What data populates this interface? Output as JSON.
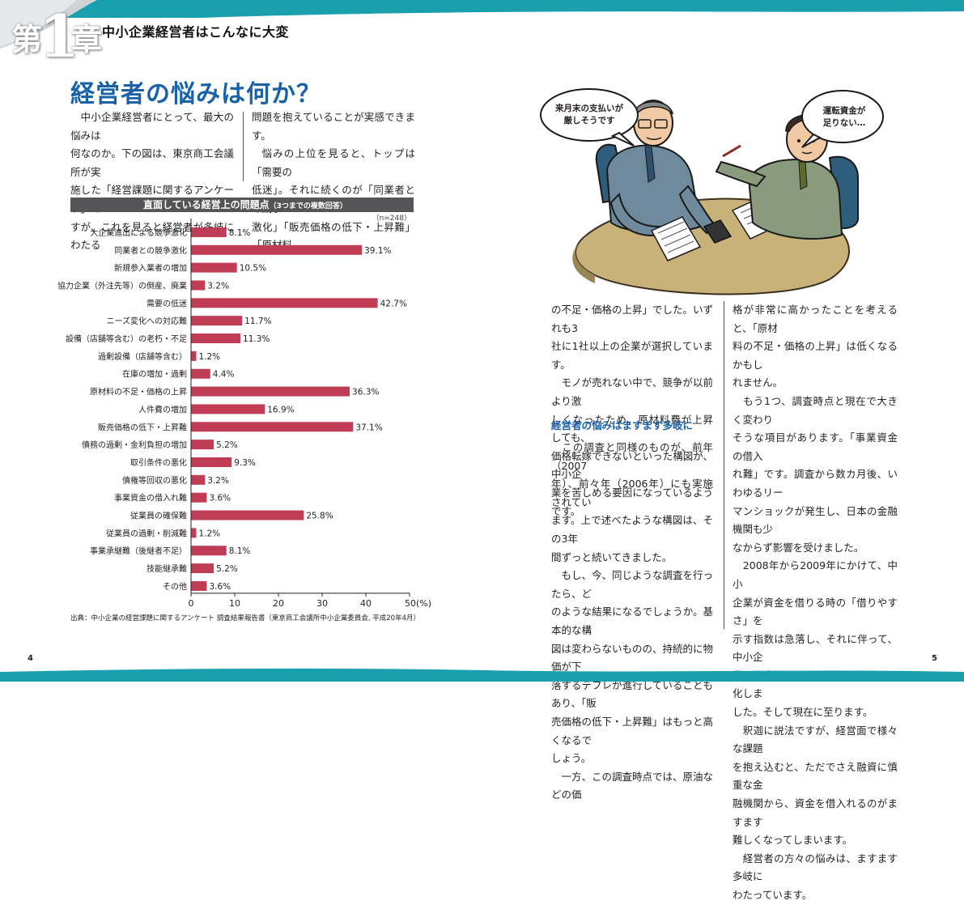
{
  "header": {
    "chapter_char1": "第",
    "chapter_num": "1",
    "chapter_char2": "章",
    "chapter_title": "中小企業経営者はこんなに大変"
  },
  "heading": "経営者の悩みは何か？",
  "intro": {
    "col1": [
      "中小企業経営者にとって、最大の悩みは",
      "何なのか。下の図は、東京商工会議所が実",
      "施した「経営課題に関するアンケート」で",
      "すが、これを見ると経営者が多岐にわたる"
    ],
    "col2": [
      "問題を抱えていることが実感できます。",
      "悩みの上位を見ると、トップは「需要の",
      "低迷」。それに続くのが「同業者との競争",
      "激化」「販売価格の低下・上昇難」「原材料"
    ]
  },
  "illustration": {
    "bubble_left": [
      "来月末の支払いが",
      "厳しそうです"
    ],
    "bubble_right": [
      "運転資金が",
      "足りない…"
    ]
  },
  "chart": {
    "title": "直面している経営上の問題点",
    "title_note": "（3つまでの複数回答）",
    "n_label": "（n=248）",
    "source": "出典：中小企業の経営課題に関するアンケート 調査結果報告書（東京商工会議所中小企業委員会, 平成20年4月）"
  },
  "chart_data": {
    "type": "bar",
    "orientation": "horizontal",
    "title": "直面している経営上の問題点",
    "subtitle": "（3つまでの複数回答）",
    "n": "（n=248）",
    "categories": [
      "大企業進出による競争激化",
      "同業者との競争激化",
      "新規参入業者の増加",
      "協力企業（外注先等）の倒産、廃業",
      "需要の低迷",
      "ニーズ変化への対応難",
      "設備（店舗等含む）の老朽・不足",
      "過剰設備（店舗等含む）",
      "在庫の増加・過剰",
      "原材料の不足・価格の上昇",
      "人件費の増加",
      "販売価格の低下・上昇難",
      "債務の過剰・金利負担の増加",
      "取引条件の悪化",
      "債権等回収の悪化",
      "事業資金の借入れ難",
      "従業員の確保難",
      "従業員の過剰・削減難",
      "事業承継難（後継者不足）",
      "技能継承難",
      "その他"
    ],
    "values": [
      8.1,
      39.1,
      10.5,
      3.2,
      42.7,
      11.7,
      11.3,
      1.2,
      4.4,
      36.3,
      16.9,
      37.1,
      5.2,
      9.3,
      3.2,
      3.6,
      25.8,
      1.2,
      8.1,
      5.2,
      3.6
    ],
    "value_labels": [
      "8.1%",
      "39.1%",
      "10.5%",
      "3.2%",
      "42.7%",
      "11.7%",
      "11.3%",
      "1.2%",
      "4.4%",
      "36.3%",
      "16.9%",
      "37.1%",
      "5.2%",
      "9.3%",
      "3.2%",
      "3.6%",
      "25.8%",
      "1.2%",
      "8.1%",
      "5.2%",
      "3.6%"
    ],
    "xlim": [
      0,
      50
    ],
    "xticks": [
      "0",
      "10",
      "20",
      "30",
      "40",
      "50(%)"
    ],
    "bar_color": "#c13c55",
    "grid": false
  },
  "right": {
    "col1_a": [
      "の不足・価格の上昇」でした。いずれも3",
      "社に1社以上の企業が選択しています。",
      "　モノが売れない中で、競争が以前より激",
      "しくなったため、原材料費が上昇しても、",
      "価格転嫁できないといった構図が、中小企",
      "業を苦しめる要因になっているようです。"
    ],
    "subheading": "経営者の悩みはますます多岐に",
    "col1_b": [
      "　この調査と同様のものが、前年（2007",
      "年）、前々年（2006年）にも実施されてい",
      "ます。上で述べたような構図は、その3年",
      "間ずっと続いてきました。",
      "　もし、今、同じような調査を行ったら、ど",
      "のような結果になるでしょうか。基本的な構",
      "図は変わらないものの、持続的に物価が下",
      "落するデフレが進行していることもあり、「販",
      "売価格の低下・上昇難」はもっと高くなるで",
      "しょう。",
      "　一方、この調査時点では、原油などの価"
    ],
    "col2": [
      "格が非常に高かったことを考えると、「原材",
      "料の不足・価格の上昇」は低くなるかもし",
      "れません。",
      "　もう1つ、調査時点と現在で大きく変わり",
      "そうな項目があります。「事業資金の借入",
      "れ難」です。調査から数カ月後、いわゆるリー",
      "マンショックが発生し、日本の金融機関も少",
      "なからず影響を受けました。",
      "　2008年から2009年にかけて、中小",
      "企業が資金を借りる時の「借りやすさ」を",
      "示す指数は急落し、それに伴って、中小企",
      "業の資金繰りを示す指数も急速に悪化しま",
      "した。そして現在に至ります。",
      "　釈迦に説法ですが、経営面で様々な課題",
      "を抱え込むと、ただでさえ融資に慎重な金",
      "融機関から、資金を借入れるのがますます",
      "難しくなってしまいます。",
      "　経営者の方々の悩みは、ますます多岐に",
      "わたっています。"
    ]
  },
  "page_numbers": {
    "left": "4",
    "right": "5"
  }
}
